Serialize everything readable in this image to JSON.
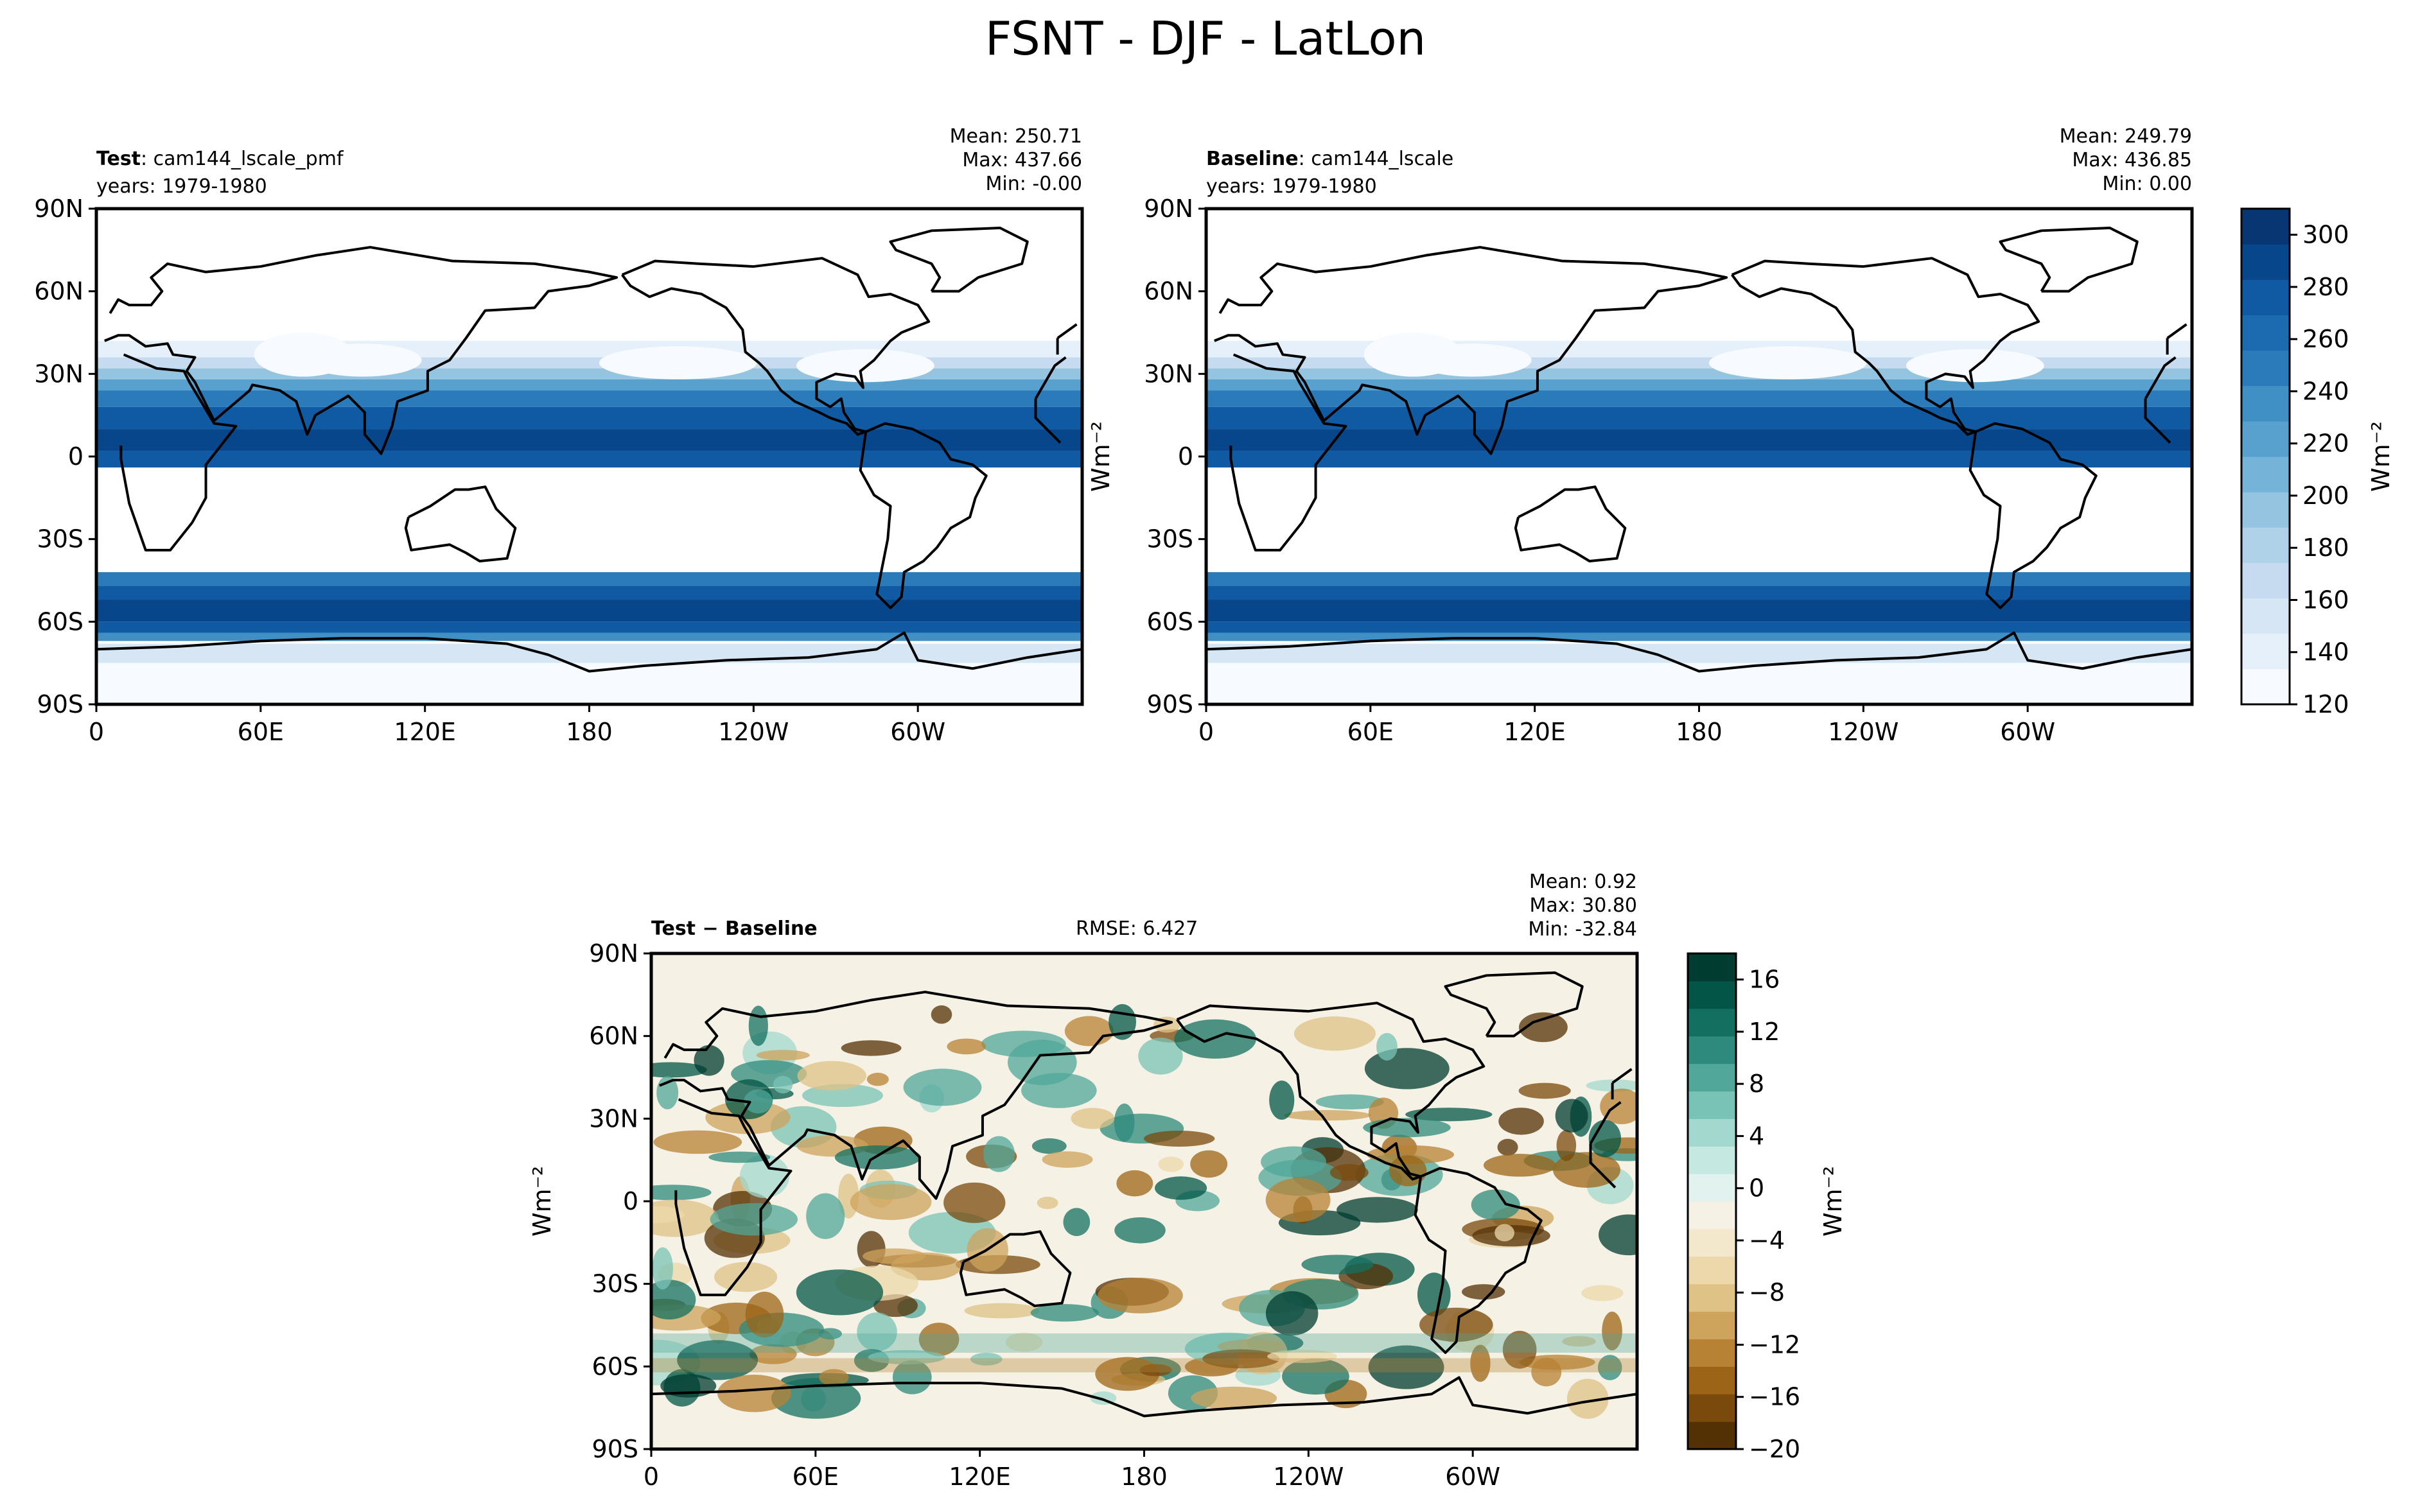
{
  "figure": {
    "suptitle": "FSNT - DJF - LatLon",
    "unit_label": "Wm⁻²"
  },
  "axes": {
    "lat_ticks": [
      "90N",
      "60N",
      "30N",
      "0",
      "30S",
      "60S",
      "90S"
    ],
    "lon_ticks": [
      "0",
      "60E",
      "120E",
      "180",
      "120W",
      "60W"
    ]
  },
  "panels": {
    "test": {
      "label_bold": "Test",
      "label_rest": ": cam144_lscale_pmf",
      "years": "years: 1979-1980",
      "mean": "Mean: 250.71",
      "max": "Max: 437.66",
      "min": "Min: -0.00"
    },
    "baseline": {
      "label_bold": "Baseline",
      "label_rest": ": cam144_lscale",
      "years": "years: 1979-1980",
      "mean": "Mean: 249.79",
      "max": "Max: 436.85",
      "min": "Min:  0.00"
    },
    "diff": {
      "label_bold": "Test − Baseline",
      "rmse": "RMSE: 6.427",
      "mean": "Mean:  0.92",
      "max": "Max: 30.80",
      "min": "Min: -32.84"
    }
  },
  "colorbars": {
    "top": {
      "ticks": [
        "120",
        "140",
        "160",
        "180",
        "200",
        "220",
        "240",
        "260",
        "280",
        "300"
      ],
      "colors": [
        "#f7fbff",
        "#e6f0fa",
        "#d6e6f4",
        "#c6dbef",
        "#b0d2e8",
        "#94c4df",
        "#75b4d8",
        "#58a1cf",
        "#4090c5",
        "#2b7bba",
        "#1c6aaf",
        "#0f5aa3",
        "#08468b",
        "#083672"
      ]
    },
    "diff": {
      "ticks": [
        "16",
        "12",
        "8",
        "4",
        "0",
        "−4",
        "−8",
        "−12",
        "−16",
        "−20"
      ],
      "colors": [
        "#543005",
        "#7a4a0c",
        "#9c6416",
        "#b78234",
        "#cea35c",
        "#dfc285",
        "#ecd8ab",
        "#f4e8cc",
        "#f5f1e4",
        "#e2f2ef",
        "#c5e8e1",
        "#a2d8ce",
        "#79c3b6",
        "#50a79a",
        "#2d8a7c",
        "#137061",
        "#025547",
        "#003c30"
      ]
    }
  },
  "chart_data": [
    {
      "type": "heatmap",
      "name": "Test",
      "subtitle": "cam144_lscale_pmf",
      "years": "1979-1980",
      "variable": "FSNT",
      "season": "DJF",
      "projection": "LatLon",
      "units": "Wm⁻²",
      "xlim": [
        0,
        360
      ],
      "ylim": [
        -90,
        90
      ],
      "color_range": [
        120,
        310
      ],
      "stats": {
        "mean": 250.71,
        "max": 437.66,
        "min": -0.0
      },
      "zonal_profile": {
        "lat": [
          90,
          75,
          60,
          50,
          40,
          30,
          20,
          10,
          0,
          -10,
          -20,
          -30,
          -40,
          -50,
          -60,
          -70,
          -80,
          -90
        ],
        "value": [
          0,
          0,
          0,
          0,
          0,
          140,
          220,
          270,
          285,
          0,
          0,
          0,
          0,
          280,
          285,
          150,
          130,
          120
        ]
      }
    },
    {
      "type": "heatmap",
      "name": "Baseline",
      "subtitle": "cam144_lscale",
      "years": "1979-1980",
      "variable": "FSNT",
      "season": "DJF",
      "projection": "LatLon",
      "units": "Wm⁻²",
      "xlim": [
        0,
        360
      ],
      "ylim": [
        -90,
        90
      ],
      "color_range": [
        120,
        310
      ],
      "stats": {
        "mean": 249.79,
        "max": 436.85,
        "min": 0.0
      },
      "zonal_profile": {
        "lat": [
          90,
          75,
          60,
          50,
          40,
          30,
          20,
          10,
          0,
          -10,
          -20,
          -30,
          -40,
          -50,
          -60,
          -70,
          -80,
          -90
        ],
        "value": [
          0,
          0,
          0,
          0,
          0,
          140,
          220,
          270,
          285,
          0,
          0,
          0,
          0,
          280,
          285,
          150,
          130,
          120
        ]
      }
    },
    {
      "type": "heatmap",
      "name": "Test − Baseline",
      "units": "Wm⁻²",
      "xlim": [
        0,
        360
      ],
      "ylim": [
        -90,
        90
      ],
      "color_range": [
        -20,
        18
      ],
      "stats": {
        "mean": 0.92,
        "max": 30.8,
        "min": -32.84,
        "rmse": 6.427
      }
    }
  ]
}
